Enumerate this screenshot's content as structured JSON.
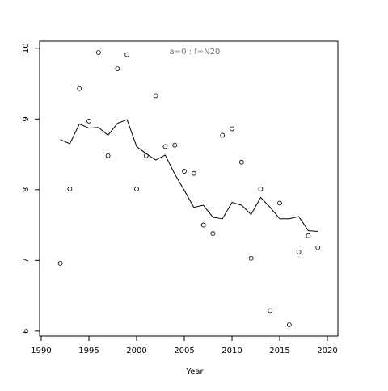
{
  "chart_data": {
    "type": "scatter",
    "annotation": "a=0  :  f=N20",
    "xlabel": "Year",
    "x": [
      1992,
      1993,
      1994,
      1995,
      1996,
      1997,
      1998,
      1999,
      2000,
      2001,
      2002,
      2003,
      2004,
      2005,
      2006,
      2007,
      2008,
      2009,
      2010,
      2011,
      2012,
      2013,
      2014,
      2015,
      2016,
      2017,
      2018,
      2019
    ],
    "series": [
      {
        "style": "points",
        "color": "#000000",
        "values": [
          6.96,
          8.01,
          9.43,
          8.97,
          9.94,
          8.48,
          9.71,
          9.91,
          8.01,
          8.48,
          9.33,
          8.61,
          8.63,
          8.26,
          8.23,
          7.5,
          7.38,
          8.77,
          8.86,
          8.39,
          7.03,
          8.01,
          6.29,
          7.81,
          6.09,
          7.12,
          7.35,
          7.18
        ]
      },
      {
        "style": "line",
        "color": "#000000",
        "values": [
          8.71,
          8.65,
          8.93,
          8.87,
          8.88,
          8.77,
          8.94,
          8.99,
          8.61,
          8.51,
          8.42,
          8.49,
          8.22,
          7.99,
          7.75,
          7.78,
          7.61,
          7.59,
          7.82,
          7.78,
          7.65,
          7.89,
          7.75,
          7.59,
          7.59,
          7.62,
          7.42,
          7.41
        ]
      }
    ],
    "xlim": [
      1989.83,
      2021.1
    ],
    "ylim": [
      5.93,
      10.1
    ],
    "xticks": [
      1990,
      1995,
      2000,
      2005,
      2010,
      2015,
      2020
    ],
    "yticks": [
      6,
      7,
      8,
      9,
      10
    ]
  }
}
